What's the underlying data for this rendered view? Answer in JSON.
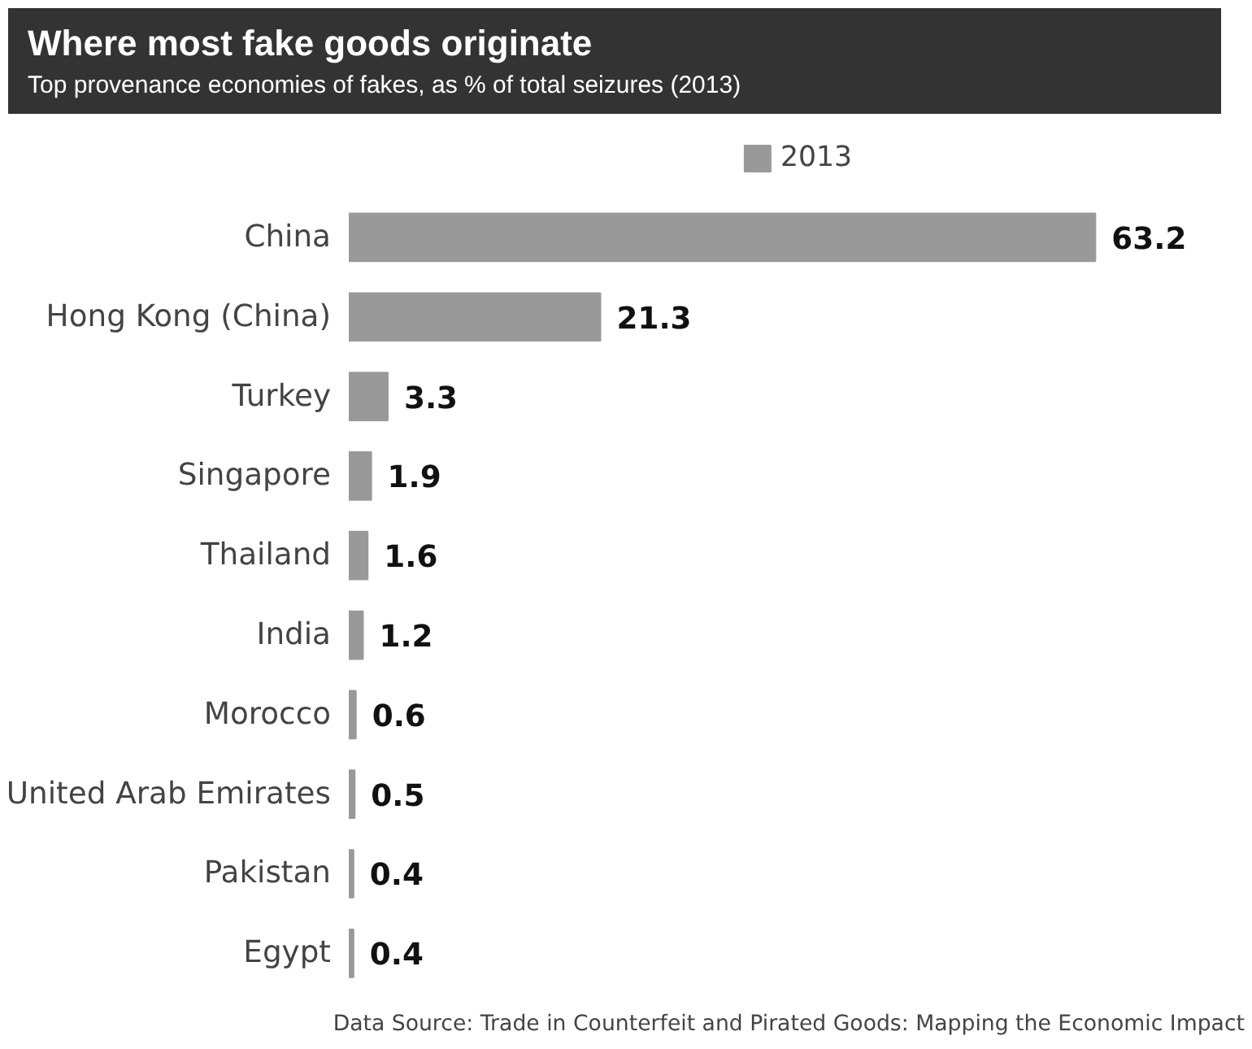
{
  "chart_data": {
    "type": "bar",
    "orientation": "horizontal",
    "title": "Where most fake goods originate",
    "subtitle": "Top provenance economies of fakes, as % of total seizures (2013)",
    "categories": [
      "China",
      "Hong Kong (China)",
      "Turkey",
      "Singapore",
      "Thailand",
      "India",
      "Morocco",
      "United Arab Emirates",
      "Pakistan",
      "Egypt"
    ],
    "series": [
      {
        "name": "2013",
        "color": "#999999",
        "values": [
          63.2,
          21.3,
          3.3,
          1.9,
          1.6,
          1.2,
          0.6,
          0.5,
          0.4,
          0.4
        ]
      }
    ],
    "data_labels": true,
    "legend": "top",
    "grid": false,
    "annotations": [
      "Data Source: Trade in Counterfeit and Pirated Goods: Mapping the Economic Impact"
    ]
  }
}
